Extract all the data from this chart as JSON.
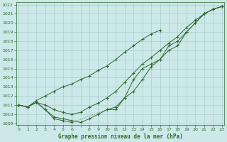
{
  "x_all": [
    0,
    1,
    2,
    3,
    4,
    5,
    6,
    7,
    8,
    9,
    10,
    11,
    12,
    13,
    14,
    15,
    16,
    17,
    18,
    19,
    20,
    21,
    22,
    23
  ],
  "line1_y": [
    1011.0,
    1010.8,
    1011.3,
    1010.5,
    1009.5,
    1009.3,
    1009.1,
    null,
    null,
    null,
    1010.5,
    1010.5,
    1011.8,
    1013.8,
    1015.0,
    1015.5,
    1016.0,
    1017.5,
    1018.0,
    1019.0,
    1020.0,
    1021.0,
    1021.5,
    1021.8
  ],
  "line2_y": [
    1011.0,
    1010.8,
    1011.3,
    1010.5,
    1009.7,
    1009.5,
    1009.3,
    1009.1,
    1009.5,
    1010.0,
    1010.5,
    1010.8,
    1011.8,
    1012.5,
    1013.8,
    1015.2,
    1016.0,
    1017.0,
    1017.5,
    1019.0,
    1020.0,
    1021.0,
    1021.5,
    1021.8
  ],
  "line3_y": [
    1011.0,
    1010.8,
    1011.3,
    1011.0,
    1010.5,
    1010.2,
    1010.0,
    1010.2,
    1010.8,
    1011.2,
    1011.8,
    1012.5,
    1013.5,
    1014.5,
    1015.5,
    1016.2,
    1017.0,
    1017.8,
    1018.5,
    1019.5,
    1020.3,
    1021.0,
    1021.5,
    1021.8
  ],
  "line4_y": [
    1011.0,
    1010.8,
    1011.5,
    1012.0,
    1012.5,
    1013.0,
    1013.3,
    1013.8,
    1014.2,
    1014.8,
    1015.3,
    1016.0,
    1016.8,
    1017.5,
    1018.2,
    1018.8,
    1019.2,
    null,
    null,
    null,
    null,
    null,
    null,
    null
  ],
  "ylim_min": 1008.8,
  "ylim_max": 1022.3,
  "yticks": [
    1009,
    1010,
    1011,
    1012,
    1013,
    1014,
    1015,
    1016,
    1017,
    1018,
    1019,
    1020,
    1021,
    1022
  ],
  "xtick_labels": [
    "0",
    "1",
    "2",
    "3",
    "4",
    "5",
    "6",
    "",
    "8",
    "9",
    "10",
    "11",
    "12",
    "13",
    "14",
    "15",
    "16",
    "17",
    "18",
    "19",
    "20",
    "21",
    "22",
    "23"
  ],
  "xlabel": "Graphe pression niveau de la mer (hPa)",
  "line_color": "#2d6a2d",
  "bg_color": "#cce8e8",
  "grid_color": "#aacece",
  "spine_color": "#2d6a2d"
}
